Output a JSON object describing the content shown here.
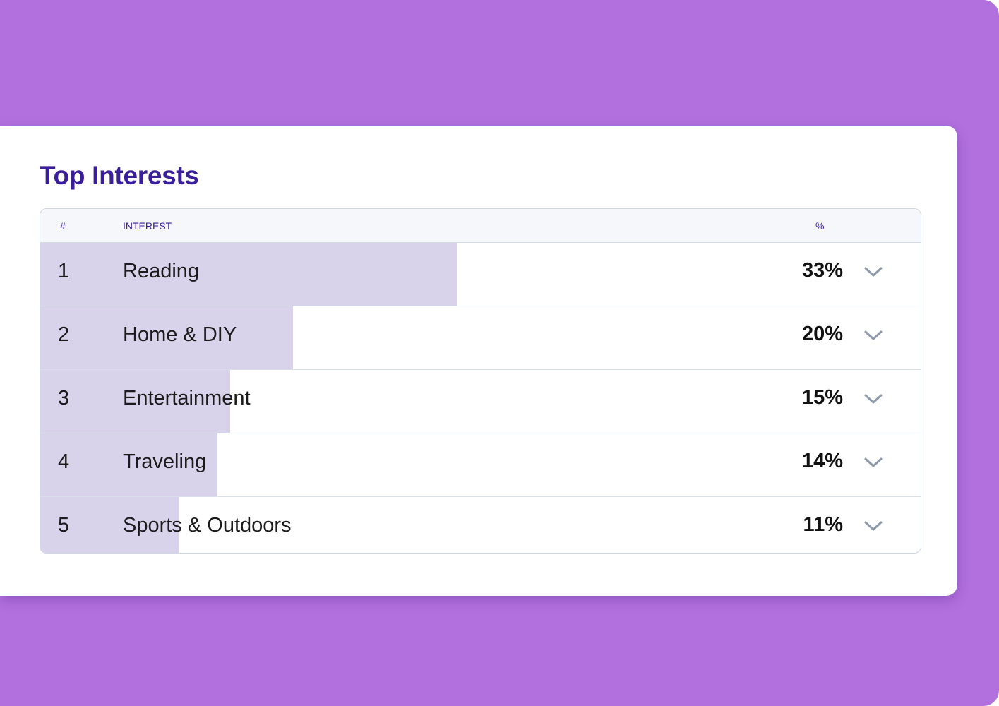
{
  "title": "Top Interests",
  "columns": {
    "rank": "#",
    "interest": "INTEREST",
    "percent": "%"
  },
  "rows": [
    {
      "rank": "1",
      "name": "Reading",
      "percent_label": "33%",
      "bar_fraction": 0.33
    },
    {
      "rank": "2",
      "name": "Home & DIY",
      "percent_label": "20%",
      "bar_fraction": 0.2
    },
    {
      "rank": "3",
      "name": "Entertainment",
      "percent_label": "15%",
      "bar_fraction": 0.15
    },
    {
      "rank": "4",
      "name": "Traveling",
      "percent_label": "14%",
      "bar_fraction": 0.14
    },
    {
      "rank": "5",
      "name": "Sports & Outdoors",
      "percent_label": "11%",
      "bar_fraction": 0.11
    }
  ],
  "icons": {
    "expand": "chevron-down-icon"
  },
  "colors": {
    "background": "#b270df",
    "title": "#3b1e9b",
    "bar_fill": "#d8d2eb",
    "chevron": "#8d9aab"
  }
}
